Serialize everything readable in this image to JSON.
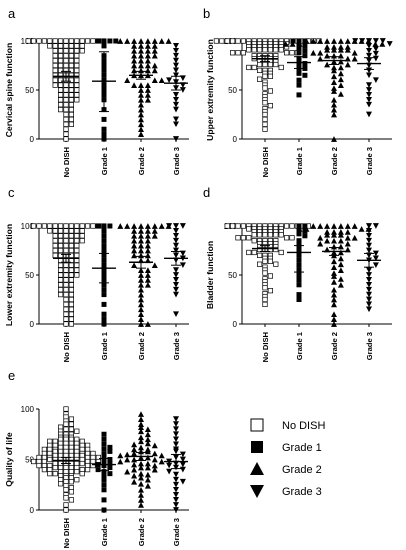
{
  "figure": {
    "legend": {
      "entries": [
        {
          "label": "No DISH",
          "marker": "open-square"
        },
        {
          "label": "Grade 1",
          "marker": "filled-square"
        },
        {
          "label": "Grade 2",
          "marker": "triangle-up"
        },
        {
          "label": "Grade 3",
          "marker": "triangle-down"
        }
      ]
    },
    "colors": {
      "marker": "#000000",
      "open_marker_fill": "#ffffff",
      "axis": "#000000"
    }
  },
  "chart_data": [
    {
      "panel": "a",
      "type": "scatter",
      "ylabel": "Cervical spine function",
      "ylim": [
        0,
        100
      ],
      "yticks": [
        0,
        50,
        100
      ],
      "categories": [
        "No DISH",
        "Grade 1",
        "Grade 2",
        "Grade 3"
      ],
      "summary": [
        {
          "mean": 64,
          "low": 59,
          "high": 69
        },
        {
          "mean": 59,
          "low": 28,
          "high": 89
        },
        {
          "mean": 65,
          "low": 61,
          "high": 69
        },
        {
          "mean": 57,
          "low": 50,
          "high": 64
        }
      ],
      "points": [
        [
          100,
          100,
          100,
          100,
          100,
          100,
          100,
          100,
          100,
          100,
          100,
          100,
          100,
          100,
          100,
          95,
          95,
          95,
          95,
          95,
          95,
          95,
          90,
          90,
          90,
          90,
          90,
          90,
          85,
          85,
          85,
          85,
          85,
          80,
          80,
          80,
          80,
          80,
          75,
          75,
          75,
          75,
          75,
          70,
          70,
          70,
          70,
          70,
          65,
          65,
          65,
          65,
          65,
          60,
          60,
          60,
          60,
          60,
          55,
          55,
          55,
          55,
          55,
          50,
          50,
          50,
          50,
          45,
          45,
          45,
          45,
          40,
          40,
          40,
          40,
          35,
          35,
          35,
          30,
          30,
          30,
          25,
          25,
          20,
          20,
          15,
          15,
          10,
          5,
          0
        ],
        [
          100,
          100,
          100,
          100,
          95,
          85,
          80,
          75,
          70,
          65,
          60,
          55,
          50,
          45,
          40,
          30,
          20,
          10,
          5,
          0
        ],
        [
          100,
          100,
          100,
          100,
          100,
          100,
          100,
          100,
          95,
          95,
          95,
          95,
          90,
          90,
          90,
          90,
          85,
          85,
          85,
          85,
          80,
          80,
          80,
          75,
          75,
          75,
          75,
          70,
          70,
          70,
          70,
          65,
          65,
          65,
          60,
          60,
          60,
          55,
          55,
          55,
          50,
          50,
          45,
          45,
          40,
          40,
          35,
          30,
          25,
          20,
          15,
          10,
          5
        ],
        [
          95,
          90,
          85,
          80,
          75,
          70,
          65,
          62,
          60,
          58,
          55,
          52,
          50,
          45,
          40,
          35,
          30,
          20,
          15,
          0
        ]
      ]
    },
    {
      "panel": "b",
      "type": "scatter",
      "ylabel": "Upper extremity function",
      "ylim": [
        0,
        100
      ],
      "yticks": [
        0,
        50,
        100
      ],
      "categories": [
        "No DISH",
        "Grade 1",
        "Grade 2",
        "Grade 3"
      ],
      "summary": [
        {
          "mean": 82,
          "low": 79,
          "high": 85
        },
        {
          "mean": 78,
          "low": 72,
          "high": 84
        },
        {
          "mean": 80,
          "low": 76,
          "high": 84
        },
        {
          "mean": 77,
          "low": 71,
          "high": 83
        }
      ],
      "points": [
        [
          100,
          100,
          100,
          100,
          100,
          100,
          100,
          100,
          100,
          100,
          100,
          100,
          100,
          100,
          100,
          100,
          100,
          100,
          100,
          100,
          97,
          97,
          97,
          97,
          97,
          97,
          97,
          97,
          94,
          94,
          94,
          94,
          94,
          94,
          94,
          94,
          91,
          91,
          91,
          91,
          91,
          91,
          91,
          88,
          88,
          88,
          88,
          88,
          88,
          85,
          85,
          85,
          85,
          85,
          82,
          82,
          82,
          82,
          82,
          79,
          79,
          79,
          79,
          76,
          76,
          76,
          76,
          73,
          73,
          73,
          70,
          70,
          70,
          67,
          67,
          64,
          64,
          61,
          58,
          55,
          52,
          49,
          46,
          43,
          40,
          37,
          34,
          31,
          28,
          25,
          20,
          15,
          10
        ],
        [
          100,
          100,
          100,
          97,
          95,
          92,
          90,
          88,
          85,
          82,
          80,
          77,
          75,
          72,
          70,
          67,
          65,
          60,
          55,
          45
        ],
        [
          100,
          100,
          100,
          100,
          100,
          100,
          100,
          100,
          100,
          100,
          97,
          97,
          97,
          97,
          97,
          94,
          94,
          94,
          94,
          91,
          91,
          91,
          91,
          88,
          88,
          88,
          85,
          85,
          85,
          82,
          82,
          82,
          79,
          79,
          76,
          76,
          73,
          73,
          70,
          67,
          64,
          61,
          58,
          55,
          52,
          49,
          46,
          40,
          35,
          30,
          25,
          0
        ],
        [
          100,
          100,
          100,
          100,
          100,
          97,
          95,
          92,
          90,
          87,
          85,
          82,
          80,
          75,
          70,
          65,
          60,
          55,
          50,
          45,
          40,
          35,
          25
        ]
      ]
    },
    {
      "panel": "c",
      "type": "scatter",
      "ylabel": "Lower extremity function",
      "ylim": [
        0,
        100
      ],
      "yticks": [
        0,
        50,
        100
      ],
      "categories": [
        "No DISH",
        "Grade 1",
        "Grade 2",
        "Grade 3"
      ],
      "summary": [
        {
          "mean": 67,
          "low": 63,
          "high": 71
        },
        {
          "mean": 57,
          "low": 42,
          "high": 72
        },
        {
          "mean": 63,
          "low": 57,
          "high": 69
        },
        {
          "mean": 67,
          "low": 60,
          "high": 74
        }
      ],
      "points": [
        [
          100,
          100,
          100,
          100,
          100,
          100,
          100,
          100,
          100,
          100,
          100,
          100,
          100,
          100,
          95,
          95,
          95,
          95,
          95,
          95,
          95,
          90,
          90,
          90,
          90,
          90,
          90,
          85,
          85,
          85,
          85,
          85,
          85,
          80,
          80,
          80,
          80,
          80,
          75,
          75,
          75,
          75,
          75,
          70,
          70,
          70,
          70,
          70,
          65,
          65,
          65,
          65,
          60,
          60,
          60,
          60,
          55,
          55,
          55,
          55,
          50,
          50,
          50,
          50,
          45,
          45,
          45,
          40,
          40,
          40,
          35,
          35,
          35,
          30,
          30,
          30,
          25,
          25,
          20,
          20,
          15,
          15,
          10,
          10,
          5,
          5,
          0,
          0
        ],
        [
          100,
          100,
          100,
          95,
          90,
          85,
          80,
          75,
          70,
          65,
          60,
          55,
          50,
          45,
          40,
          35,
          30,
          20,
          10,
          5,
          0
        ],
        [
          100,
          100,
          100,
          100,
          100,
          100,
          100,
          100,
          95,
          95,
          95,
          95,
          90,
          90,
          90,
          90,
          85,
          85,
          85,
          80,
          80,
          80,
          75,
          75,
          75,
          70,
          70,
          70,
          65,
          65,
          60,
          60,
          55,
          55,
          50,
          50,
          45,
          45,
          40,
          40,
          35,
          30,
          25,
          20,
          15,
          10,
          5,
          0,
          0
        ],
        [
          100,
          100,
          100,
          95,
          90,
          85,
          80,
          75,
          72,
          70,
          67,
          65,
          60,
          55,
          50,
          45,
          40,
          35,
          30,
          10
        ]
      ]
    },
    {
      "panel": "d",
      "type": "scatter",
      "ylabel": "Bladder function",
      "ylim": [
        0,
        100
      ],
      "yticks": [
        0,
        50,
        100
      ],
      "categories": [
        "No DISH",
        "Grade 1",
        "Grade 2",
        "Grade 3"
      ],
      "summary": [
        {
          "mean": 77,
          "low": 74,
          "high": 80
        },
        {
          "mean": 73,
          "low": 53,
          "high": 80
        },
        {
          "mean": 74,
          "low": 70,
          "high": 78
        },
        {
          "mean": 65,
          "low": 58,
          "high": 72
        }
      ],
      "points": [
        [
          100,
          100,
          100,
          100,
          100,
          100,
          100,
          100,
          100,
          100,
          100,
          100,
          100,
          100,
          100,
          100,
          97,
          97,
          97,
          97,
          97,
          97,
          97,
          94,
          94,
          94,
          94,
          94,
          94,
          91,
          91,
          91,
          91,
          91,
          91,
          88,
          88,
          88,
          88,
          88,
          85,
          85,
          85,
          85,
          85,
          82,
          82,
          82,
          82,
          79,
          79,
          79,
          79,
          76,
          76,
          76,
          76,
          73,
          73,
          73,
          70,
          70,
          70,
          67,
          67,
          64,
          64,
          61,
          61,
          58,
          55,
          52,
          49,
          46,
          43,
          40,
          37,
          34,
          31,
          28,
          25,
          20
        ],
        [
          100,
          100,
          97,
          95,
          92,
          90,
          85,
          82,
          80,
          75,
          70,
          65,
          60,
          55,
          50,
          45,
          40,
          30,
          25
        ],
        [
          100,
          100,
          100,
          100,
          100,
          100,
          100,
          97,
          97,
          97,
          97,
          94,
          94,
          94,
          94,
          91,
          91,
          91,
          88,
          88,
          88,
          85,
          85,
          85,
          82,
          82,
          79,
          79,
          76,
          76,
          73,
          73,
          70,
          67,
          64,
          61,
          58,
          55,
          52,
          49,
          46,
          43,
          40,
          35,
          30,
          25,
          20,
          10,
          5,
          0
        ],
        [
          100,
          100,
          95,
          90,
          85,
          80,
          75,
          72,
          70,
          67,
          65,
          60,
          55,
          50,
          45,
          40,
          35,
          30,
          25,
          20,
          15
        ]
      ]
    },
    {
      "panel": "e",
      "type": "scatter",
      "ylabel": "Quality of life",
      "ylim": [
        0,
        100
      ],
      "yticks": [
        0,
        50,
        100
      ],
      "categories": [
        "No DISH",
        "Grade 1",
        "Grade 2",
        "Grade 3"
      ],
      "summary": [
        {
          "mean": 49,
          "low": 46,
          "high": 52
        },
        {
          "mean": 45,
          "low": 39,
          "high": 51
        },
        {
          "mean": 53,
          "low": 49,
          "high": 57
        },
        {
          "mean": 48,
          "low": 41,
          "high": 55
        }
      ],
      "points": [
        [
          100,
          95,
          92,
          90,
          88,
          85,
          85,
          82,
          80,
          80,
          78,
          78,
          75,
          75,
          75,
          72,
          72,
          72,
          70,
          70,
          70,
          70,
          68,
          68,
          68,
          66,
          66,
          66,
          66,
          64,
          64,
          64,
          64,
          62,
          62,
          62,
          62,
          60,
          60,
          60,
          60,
          60,
          58,
          58,
          58,
          58,
          58,
          56,
          56,
          56,
          56,
          56,
          54,
          54,
          54,
          54,
          54,
          54,
          52,
          52,
          52,
          52,
          52,
          52,
          50,
          50,
          50,
          50,
          50,
          50,
          50,
          48,
          48,
          48,
          48,
          48,
          48,
          46,
          46,
          46,
          46,
          46,
          46,
          44,
          44,
          44,
          44,
          44,
          42,
          42,
          42,
          42,
          42,
          40,
          40,
          40,
          40,
          38,
          38,
          38,
          38,
          36,
          36,
          36,
          34,
          34,
          34,
          32,
          32,
          30,
          30,
          28,
          28,
          26,
          24,
          22,
          20,
          18,
          15,
          12,
          10,
          5,
          0
        ],
        [
          75,
          70,
          65,
          62,
          60,
          58,
          55,
          52,
          50,
          48,
          46,
          45,
          44,
          42,
          40,
          38,
          36,
          34,
          30,
          25,
          20,
          10,
          0
        ],
        [
          95,
          90,
          85,
          82,
          80,
          78,
          75,
          72,
          70,
          68,
          66,
          65,
          64,
          62,
          60,
          60,
          58,
          58,
          56,
          56,
          55,
          54,
          54,
          52,
          52,
          50,
          50,
          50,
          48,
          48,
          46,
          46,
          45,
          44,
          42,
          42,
          40,
          40,
          38,
          36,
          35,
          34,
          32,
          30,
          28,
          26,
          24,
          20,
          15,
          10,
          5
        ],
        [
          90,
          85,
          80,
          75,
          70,
          65,
          60,
          58,
          55,
          52,
          50,
          48,
          46,
          45,
          44,
          42,
          40,
          38,
          35,
          30,
          28,
          25,
          20,
          15,
          10,
          5,
          0
        ]
      ]
    }
  ]
}
